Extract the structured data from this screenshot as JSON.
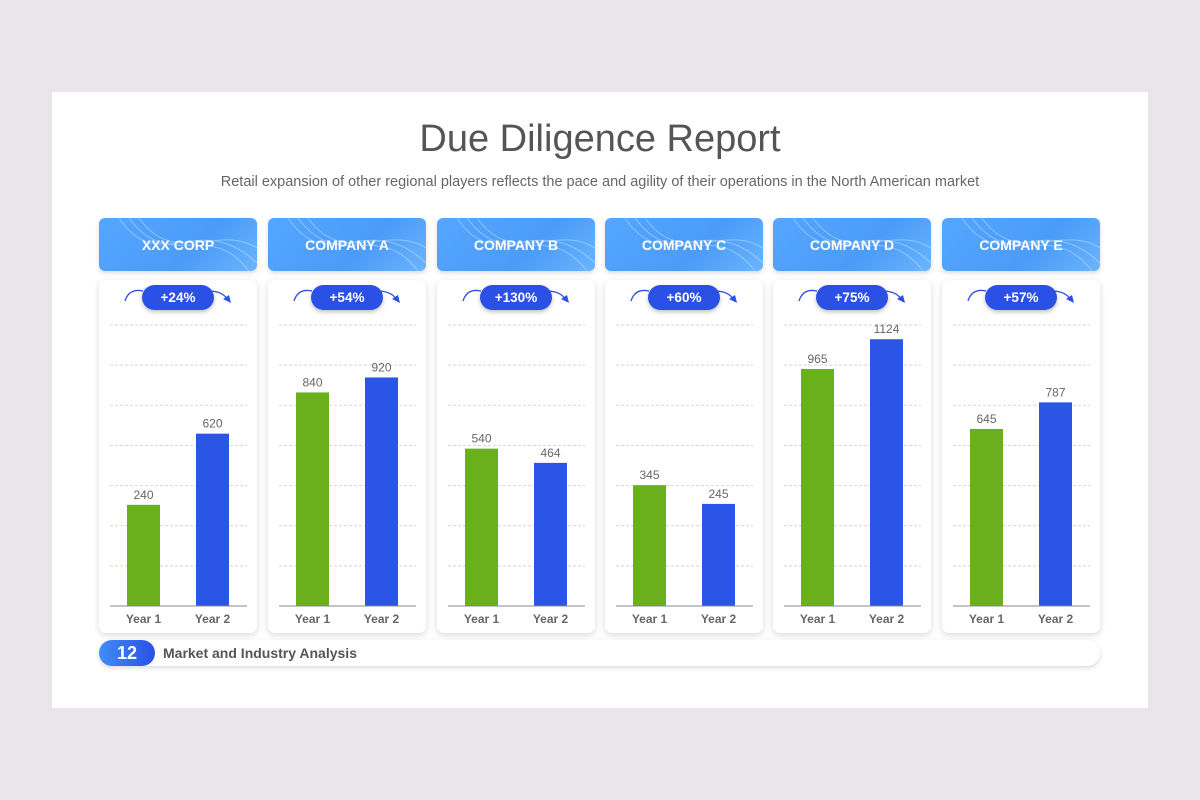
{
  "title": "Due Diligence Report",
  "subtitle": "Retail expansion of other regional players reflects the pace and agility of their operations in the North American market",
  "colors": {
    "year1": "#6aaf1c",
    "year2": "#2b55e6",
    "header": "#4a9cf8",
    "pill": "#2b50e6"
  },
  "chart_data": [
    {
      "type": "bar",
      "title": "XXX CORP",
      "growth": "+24%",
      "categories": [
        "Year 1",
        "Year 2"
      ],
      "values": [
        240,
        620
      ],
      "ylim": [
        -300,
        1200
      ],
      "grid": true
    },
    {
      "type": "bar",
      "title": "COMPANY A",
      "growth": "+54%",
      "categories": [
        "Year 1",
        "Year 2"
      ],
      "values": [
        840,
        920
      ],
      "ylim": [
        -300,
        1200
      ],
      "grid": true
    },
    {
      "type": "bar",
      "title": "COMPANY B",
      "growth": "+130%",
      "categories": [
        "Year 1",
        "Year 2"
      ],
      "values": [
        540,
        464
      ],
      "ylim": [
        -300,
        1200
      ],
      "grid": true
    },
    {
      "type": "bar",
      "title": "COMPANY C",
      "growth": "+60%",
      "categories": [
        "Year 1",
        "Year 2"
      ],
      "values": [
        345,
        245
      ],
      "ylim": [
        -300,
        1200
      ],
      "grid": true
    },
    {
      "type": "bar",
      "title": "COMPANY D",
      "growth": "+75%",
      "categories": [
        "Year 1",
        "Year 2"
      ],
      "values": [
        965,
        1124
      ],
      "ylim": [
        -300,
        1200
      ],
      "grid": true
    },
    {
      "type": "bar",
      "title": "COMPANY E",
      "growth": "+57%",
      "categories": [
        "Year 1",
        "Year 2"
      ],
      "values": [
        645,
        787
      ],
      "ylim": [
        -300,
        1200
      ],
      "grid": true
    }
  ],
  "footer": {
    "page_number": "12",
    "section": "Market and Industry Analysis"
  }
}
